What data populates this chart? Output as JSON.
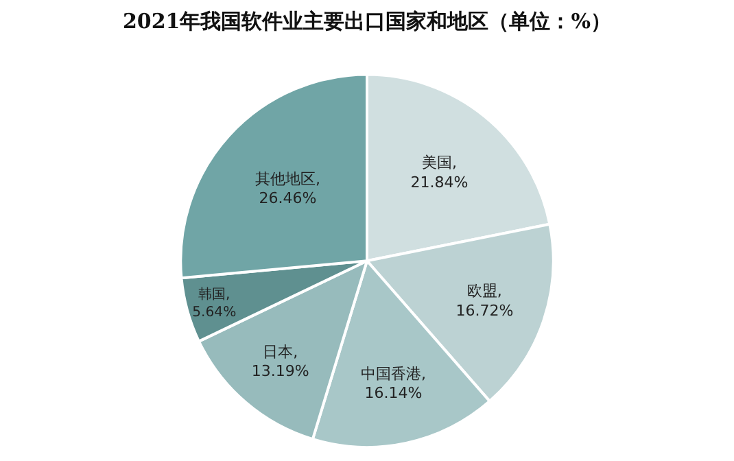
{
  "chart_data": {
    "type": "pie",
    "title": "2021年我国软件业主要出口国家和地区（单位：%）",
    "categories": [
      "美国",
      "欧盟",
      "中国香港",
      "日本",
      "韩国",
      "其他地区"
    ],
    "values": [
      21.84,
      16.72,
      16.14,
      13.19,
      5.64,
      26.46
    ],
    "colors": [
      "#d0dfe0",
      "#bcd2d3",
      "#a8c7c8",
      "#97bbbc",
      "#5f9090",
      "#70a5a6"
    ],
    "value_labels": [
      ",\n21.84%",
      ",\n16.72%",
      ",\n16.14%",
      ",\n13.19%",
      ",\n5.64%",
      ",\n26.46%"
    ],
    "legend": false
  }
}
